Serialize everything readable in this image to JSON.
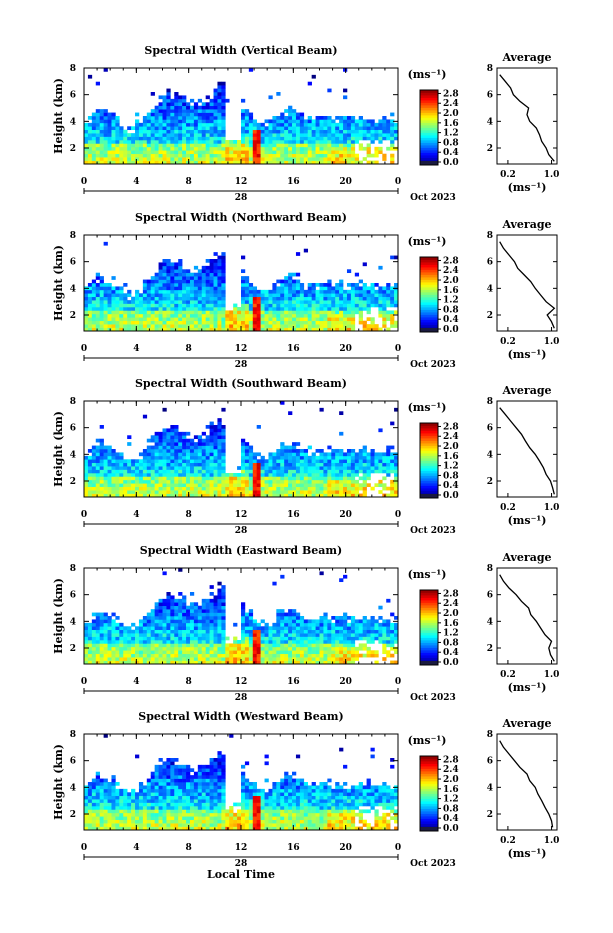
{
  "figure": {
    "xlabel": "Local Time",
    "day_label": "28",
    "date_label": "Oct 2023",
    "ylabel": "Height (km)",
    "avg_title": "Average",
    "unit_label": "(ms⁻¹)"
  },
  "chart_data": [
    {
      "type": "heatmap",
      "title": "Spectral Width (Vertical Beam)",
      "xlabel": "Local Time",
      "ylabel": "Height (km)",
      "x_ticks": [
        "0",
        "4",
        "8",
        "12",
        "16",
        "20",
        "0"
      ],
      "y_ticks": [
        "2",
        "4",
        "6",
        "8"
      ],
      "xlim": [
        0,
        24
      ],
      "ylim": [
        0.8,
        8
      ],
      "colorbar": {
        "label": "(ms⁻¹)",
        "ticks": [
          "0.0",
          "0.4",
          "0.8",
          "1.2",
          "1.6",
          "2.0",
          "2.4",
          "2.8"
        ],
        "range": [
          0,
          2.9
        ]
      },
      "average_profile": {
        "title": "Average",
        "xlabel": "(ms⁻¹)",
        "x_ticks": [
          "0.2",
          "1.0"
        ],
        "y_ticks": [
          "2",
          "4",
          "6",
          "8"
        ],
        "heights": [
          1.0,
          1.5,
          2.0,
          2.5,
          3.0,
          3.5,
          4.0,
          4.5,
          5.0,
          5.5,
          6.0,
          6.5,
          7.0,
          7.5
        ],
        "values": [
          1.05,
          0.95,
          0.9,
          0.82,
          0.78,
          0.72,
          0.6,
          0.55,
          0.58,
          0.42,
          0.3,
          0.25,
          0.15,
          0.05
        ]
      }
    },
    {
      "type": "heatmap",
      "title": "Spectral Width (Northward Beam)",
      "xlabel": "Local Time",
      "ylabel": "Height (km)",
      "x_ticks": [
        "0",
        "4",
        "8",
        "12",
        "16",
        "20",
        "0"
      ],
      "y_ticks": [
        "2",
        "4",
        "6",
        "8"
      ],
      "xlim": [
        0,
        24
      ],
      "ylim": [
        0.8,
        8
      ],
      "colorbar": {
        "label": "(ms⁻¹)",
        "ticks": [
          "0.0",
          "0.4",
          "0.8",
          "1.2",
          "1.6",
          "2.0",
          "2.4",
          "2.8"
        ],
        "range": [
          0,
          2.9
        ]
      },
      "average_profile": {
        "title": "Average",
        "xlabel": "(ms⁻¹)",
        "x_ticks": [
          "0.2",
          "1.0"
        ],
        "y_ticks": [
          "2",
          "4",
          "6",
          "8"
        ],
        "heights": [
          1.0,
          1.5,
          2.0,
          2.5,
          3.0,
          3.5,
          4.0,
          4.5,
          5.0,
          5.5,
          6.0,
          6.5,
          7.0,
          7.5
        ],
        "values": [
          1.05,
          1.0,
          0.92,
          1.05,
          0.9,
          0.8,
          0.7,
          0.62,
          0.5,
          0.38,
          0.32,
          0.22,
          0.12,
          0.05
        ]
      }
    },
    {
      "type": "heatmap",
      "title": "Spectral Width (Southward Beam)",
      "xlabel": "Local Time",
      "ylabel": "Height (km)",
      "x_ticks": [
        "0",
        "4",
        "8",
        "12",
        "16",
        "20",
        "0"
      ],
      "y_ticks": [
        "2",
        "4",
        "6",
        "8"
      ],
      "xlim": [
        0,
        24
      ],
      "ylim": [
        0.8,
        8
      ],
      "colorbar": {
        "label": "(ms⁻¹)",
        "ticks": [
          "0.0",
          "0.4",
          "0.8",
          "1.2",
          "1.6",
          "2.0",
          "2.4",
          "2.8"
        ],
        "range": [
          0,
          2.9
        ]
      },
      "average_profile": {
        "title": "Average",
        "xlabel": "(ms⁻¹)",
        "x_ticks": [
          "0.2",
          "1.0"
        ],
        "y_ticks": [
          "2",
          "4",
          "6",
          "8"
        ],
        "heights": [
          1.0,
          1.5,
          2.0,
          2.5,
          3.0,
          3.5,
          4.0,
          4.5,
          5.0,
          5.5,
          6.0,
          6.5,
          7.0,
          7.5
        ],
        "values": [
          1.05,
          1.02,
          0.98,
          0.9,
          0.85,
          0.78,
          0.7,
          0.6,
          0.52,
          0.45,
          0.35,
          0.25,
          0.15,
          0.05
        ]
      }
    },
    {
      "type": "heatmap",
      "title": "Spectral Width (Eastward Beam)",
      "xlabel": "Local Time",
      "ylabel": "Height (km)",
      "x_ticks": [
        "0",
        "4",
        "8",
        "12",
        "16",
        "20",
        "0"
      ],
      "y_ticks": [
        "2",
        "4",
        "6",
        "8"
      ],
      "xlim": [
        0,
        24
      ],
      "ylim": [
        0.8,
        8
      ],
      "colorbar": {
        "label": "(ms⁻¹)",
        "ticks": [
          "0.0",
          "0.4",
          "0.8",
          "1.2",
          "1.6",
          "2.0",
          "2.4",
          "2.8"
        ],
        "range": [
          0,
          2.9
        ]
      },
      "average_profile": {
        "title": "Average",
        "xlabel": "(ms⁻¹)",
        "x_ticks": [
          "0.2",
          "1.0"
        ],
        "y_ticks": [
          "2",
          "4",
          "6",
          "8"
        ],
        "heights": [
          1.0,
          1.5,
          2.0,
          2.5,
          3.0,
          3.5,
          4.0,
          4.5,
          5.0,
          5.5,
          6.0,
          6.5,
          7.0,
          7.5
        ],
        "values": [
          1.05,
          0.98,
          0.95,
          1.0,
          0.88,
          0.8,
          0.72,
          0.62,
          0.58,
          0.45,
          0.35,
          0.22,
          0.12,
          0.05
        ]
      }
    },
    {
      "type": "heatmap",
      "title": "Spectral Width (Westward Beam)",
      "xlabel": "Local Time",
      "ylabel": "Height (km)",
      "x_ticks": [
        "0",
        "4",
        "8",
        "12",
        "16",
        "20",
        "0"
      ],
      "y_ticks": [
        "2",
        "4",
        "6",
        "8"
      ],
      "xlim": [
        0,
        24
      ],
      "ylim": [
        0.8,
        8
      ],
      "colorbar": {
        "label": "(ms⁻¹)",
        "ticks": [
          "0.0",
          "0.4",
          "0.8",
          "1.2",
          "1.6",
          "2.0",
          "2.4",
          "2.8"
        ],
        "range": [
          0,
          2.9
        ]
      },
      "average_profile": {
        "title": "Average",
        "xlabel": "(ms⁻¹)",
        "x_ticks": [
          "0.2",
          "1.0"
        ],
        "y_ticks": [
          "2",
          "4",
          "6",
          "8"
        ],
        "heights": [
          1.0,
          1.5,
          2.0,
          2.5,
          3.0,
          3.5,
          4.0,
          4.5,
          5.0,
          5.5,
          6.0,
          6.5,
          7.0,
          7.5
        ],
        "values": [
          1.02,
          1.0,
          0.95,
          0.88,
          0.82,
          0.75,
          0.7,
          0.6,
          0.55,
          0.42,
          0.32,
          0.22,
          0.12,
          0.05
        ]
      }
    }
  ]
}
